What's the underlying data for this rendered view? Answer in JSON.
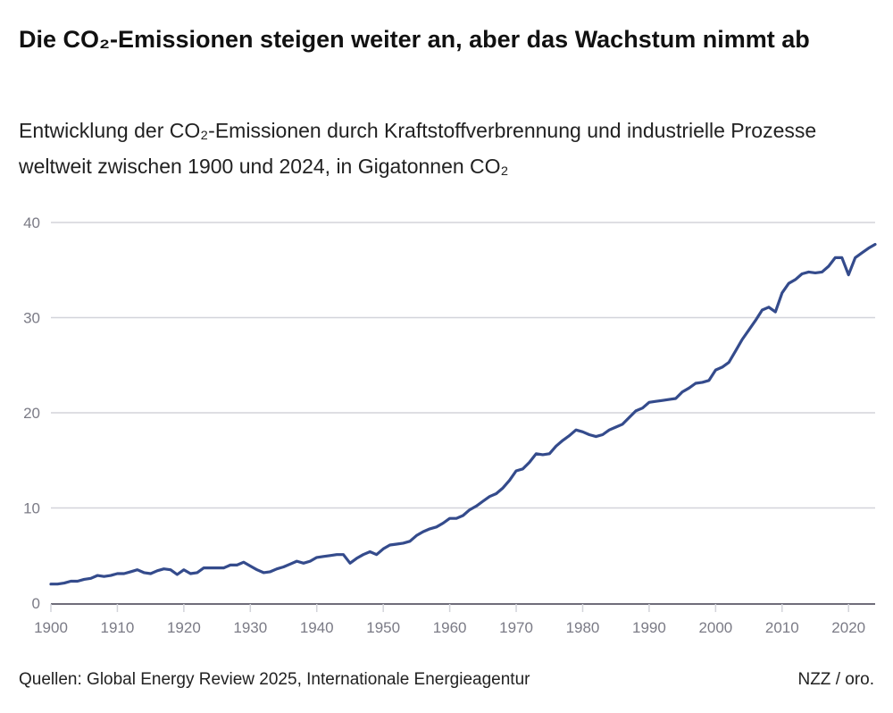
{
  "header": {
    "title": "Die CO₂-Emissionen steigen weiter an, aber das Wachstum nimmt ab",
    "subtitle": "Entwicklung der CO₂-Emissionen durch Kraftstoffverbrennung und industrielle Prozesse weltweit zwischen 1900 und 2024, in Gigatonnen CO₂"
  },
  "footer": {
    "source": "Quellen: Global Energy Review 2025, Internationale Energieagentur",
    "credit": "NZZ / oro."
  },
  "colors": {
    "line": "#344b8c",
    "grid": "#d3d4da",
    "axis": "#6f6d7a"
  },
  "chart_data": {
    "type": "line",
    "title": "Die CO₂-Emissionen steigen weiter an, aber das Wachstum nimmt ab",
    "xlabel": "",
    "ylabel": "",
    "xlim": [
      1900,
      2024
    ],
    "ylim": [
      0,
      40
    ],
    "grid": true,
    "x_ticks": [
      "1900",
      "1910",
      "1920",
      "1930",
      "1940",
      "1950",
      "1960",
      "1970",
      "1980",
      "1990",
      "2000",
      "2010",
      "2020"
    ],
    "y_ticks": [
      "0",
      "10",
      "20",
      "30",
      "40"
    ],
    "x_start": 1900,
    "values": [
      2.0,
      2.0,
      2.1,
      2.3,
      2.3,
      2.5,
      2.6,
      2.9,
      2.8,
      2.9,
      3.1,
      3.1,
      3.3,
      3.5,
      3.2,
      3.1,
      3.4,
      3.6,
      3.5,
      3.0,
      3.5,
      3.1,
      3.2,
      3.7,
      3.7,
      3.7,
      3.7,
      4.0,
      4.0,
      4.3,
      3.9,
      3.5,
      3.2,
      3.3,
      3.6,
      3.8,
      4.1,
      4.4,
      4.2,
      4.4,
      4.8,
      4.9,
      5.0,
      5.1,
      5.1,
      4.2,
      4.7,
      5.1,
      5.4,
      5.1,
      5.7,
      6.1,
      6.2,
      6.3,
      6.5,
      7.1,
      7.5,
      7.8,
      8.0,
      8.4,
      8.9,
      8.9,
      9.2,
      9.8,
      10.2,
      10.7,
      11.2,
      11.5,
      12.1,
      12.9,
      13.9,
      14.1,
      14.8,
      15.7,
      15.6,
      15.7,
      16.5,
      17.1,
      17.6,
      18.2,
      18.0,
      17.7,
      17.5,
      17.7,
      18.2,
      18.5,
      18.8,
      19.5,
      20.2,
      20.5,
      21.1,
      21.2,
      21.3,
      21.4,
      21.5,
      22.2,
      22.6,
      23.1,
      23.2,
      23.4,
      24.5,
      24.8,
      25.3,
      26.5,
      27.7,
      28.7,
      29.7,
      30.8,
      31.1,
      30.6,
      32.6,
      33.6,
      34.0,
      34.6,
      34.8,
      34.7,
      34.8,
      35.4,
      36.3,
      36.3,
      34.5,
      36.3,
      36.8,
      37.3,
      37.7
    ]
  }
}
